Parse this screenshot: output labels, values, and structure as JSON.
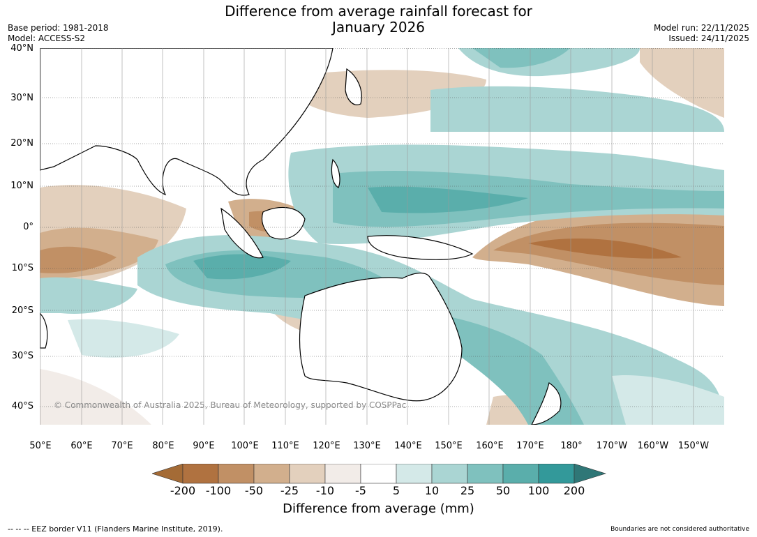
{
  "header": {
    "title_line1": "Difference from average rainfall forecast for",
    "title_line2": "January 2026",
    "base_period": "Base period: 1981-2018",
    "model": "Model: ACCESS-S2",
    "model_run": "Model run: 22/11/2025",
    "issued": "Issued: 24/11/2025"
  },
  "map": {
    "lat_labels": [
      "40°N",
      "30°N",
      "20°N",
      "10°N",
      "0°",
      "10°S",
      "20°S",
      "30°S",
      "40°S"
    ],
    "lon_labels": [
      "50°E",
      "60°E",
      "70°E",
      "80°E",
      "90°E",
      "100°E",
      "110°E",
      "120°E",
      "130°E",
      "140°E",
      "150°E",
      "160°E",
      "170°E",
      "180°",
      "170°W",
      "160°W",
      "150°W"
    ],
    "copyright": "© Commonwealth of Australia 2025, Bureau of Meteorology, supported by COSPPac",
    "colors": {
      "land": "#ffffff",
      "coast": "#000000",
      "border": "#888888",
      "grid": "#555555"
    }
  },
  "legend": {
    "tick_labels": [
      "-200",
      "-100",
      "-50",
      "-25",
      "-10",
      "-5",
      "5",
      "10",
      "25",
      "50",
      "100",
      "200"
    ],
    "title": "Difference from average (mm)",
    "colors": [
      "#a46b36",
      "#b07240",
      "#c19065",
      "#d2af8d",
      "#e3d0bd",
      "#f2ece8",
      "#ffffff",
      "#d4e9e8",
      "#aad5d3",
      "#7fc1be",
      "#5aaeab",
      "#33999a",
      "#2f7777"
    ]
  },
  "footer": {
    "eez_note": "--  --  -- EEZ border V11 (Flanders Marine Institute, 2019).",
    "boundaries_note": "Boundaries are not considered authoritative"
  }
}
